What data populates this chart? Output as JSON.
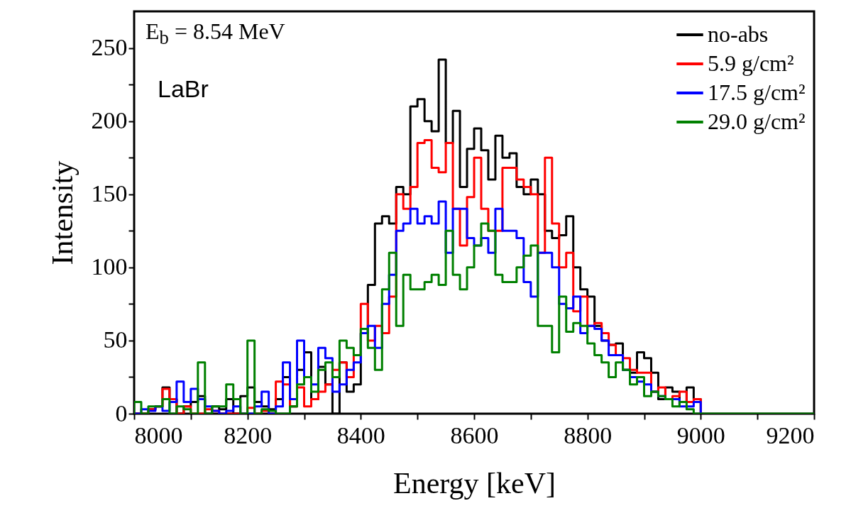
{
  "chart_data": {
    "type": "histogram",
    "xlabel": "Energy [keV]",
    "ylabel": "Intensity",
    "annotations": [
      "E$_{b}$ = 8.54 MeV",
      "LaBr"
    ],
    "bins": [
      8000,
      8012.5,
      8025,
      8037.5,
      8050,
      8062.5,
      8075,
      8087.5,
      8100,
      8112.5,
      8125,
      8137.5,
      8150,
      8162.5,
      8175,
      8187.5,
      8200,
      8212.5,
      8225,
      8237.5,
      8250,
      8262.5,
      8275,
      8287.5,
      8300,
      8312.5,
      8325,
      8337.5,
      8350,
      8362.5,
      8375,
      8387.5,
      8400,
      8412.5,
      8425,
      8437.5,
      8450,
      8462.5,
      8475,
      8487.5,
      8500,
      8512.5,
      8525,
      8537.5,
      8550,
      8562.5,
      8575,
      8587.5,
      8600,
      8612.5,
      8625,
      8637.5,
      8650,
      8662.5,
      8675,
      8687.5,
      8700,
      8712.5,
      8725,
      8737.5,
      8750,
      8762.5,
      8775,
      8787.5,
      8800,
      8812.5,
      8825,
      8837.5,
      8850,
      8862.5,
      8875,
      8887.5,
      8900,
      8912.5,
      8925,
      8937.5,
      8950,
      8962.5,
      8975,
      8987.5,
      9000,
      9012.5,
      9025,
      9037.5,
      9050,
      9062.5,
      9075,
      9087.5,
      9100,
      9112.5,
      9125,
      9137.5,
      9150,
      9162.5,
      9175,
      9187.5,
      9200
    ],
    "series": [
      {
        "name": "no-abs",
        "color": "#000000",
        "bins": [
          8000,
          8012.5,
          8025,
          8037.5,
          8050,
          8062.5,
          8075,
          8087.5,
          8100,
          8112.5,
          8125,
          8137.5,
          8150,
          8162.5,
          8175,
          8187.5,
          8200,
          8212.5,
          8225,
          8237.5,
          8250,
          8262.5,
          8275,
          8287.5,
          8300,
          8312.5,
          8325,
          8337.5,
          8350,
          8362.5,
          8375,
          8387.5,
          8400,
          8412.5,
          8425,
          8437.5,
          8450,
          8462.5,
          8475,
          8487.5,
          8500,
          8512.5,
          8525,
          8537.5,
          8550,
          8562.5,
          8575,
          8587.5,
          8600,
          8612.5,
          8625,
          8637.5,
          8650,
          8662.5,
          8675,
          8687.5,
          8700,
          8712.5,
          8725,
          8737.5,
          8750,
          8762.5,
          8775,
          8787.5,
          8800,
          8812.5,
          8825,
          8837.5,
          8850,
          8862.5,
          8875,
          8887.5,
          8900,
          8912.5,
          8925,
          8937.5,
          8950,
          8962.5,
          8975,
          8987.5,
          9000
        ],
        "values": [
          0,
          0,
          3,
          5,
          18,
          10,
          0,
          5,
          8,
          12,
          0,
          5,
          3,
          10,
          0,
          12,
          18,
          8,
          5,
          3,
          10,
          25,
          5,
          30,
          42,
          10,
          32,
          20,
          0,
          35,
          15,
          20,
          55,
          88,
          130,
          135,
          130,
          155,
          150,
          210,
          215,
          200,
          193,
          242,
          185,
          207,
          155,
          181,
          195,
          180,
          160,
          190,
          175,
          178,
          155,
          150,
          160,
          150,
          125,
          120,
          122,
          135,
          100,
          85,
          80,
          60,
          50,
          47,
          48,
          30,
          28,
          42,
          38,
          28,
          10,
          18,
          15,
          8,
          18,
          10
        ]
      },
      {
        "name": "5.9 g/cm²",
        "color": "#ff0000",
        "bins": [
          8000,
          8012.5,
          8025,
          8037.5,
          8050,
          8062.5,
          8075,
          8087.5,
          8100,
          8112.5,
          8125,
          8137.5,
          8150,
          8162.5,
          8175,
          8187.5,
          8200,
          8212.5,
          8225,
          8237.5,
          8250,
          8262.5,
          8275,
          8287.5,
          8300,
          8312.5,
          8325,
          8337.5,
          8350,
          8362.5,
          8375,
          8387.5,
          8400,
          8412.5,
          8425,
          8437.5,
          8450,
          8462.5,
          8475,
          8487.5,
          8500,
          8512.5,
          8525,
          8537.5,
          8550,
          8562.5,
          8575,
          8587.5,
          8600,
          8612.5,
          8625,
          8637.5,
          8650,
          8662.5,
          8675,
          8687.5,
          8700,
          8712.5,
          8725,
          8737.5,
          8750,
          8762.5,
          8775,
          8787.5,
          8800,
          8812.5,
          8825,
          8837.5,
          8850,
          8862.5,
          8875,
          8887.5,
          8900,
          8912.5,
          8925,
          8937.5,
          8950,
          8962.5,
          8975,
          8987.5,
          9000
        ],
        "values": [
          0,
          0,
          3,
          5,
          17,
          10,
          0,
          5,
          0,
          0,
          3,
          2,
          0,
          0,
          0,
          0,
          4,
          0,
          2,
          0,
          22,
          20,
          5,
          18,
          5,
          10,
          15,
          20,
          30,
          35,
          25,
          40,
          75,
          50,
          60,
          55,
          80,
          150,
          140,
          155,
          185,
          187,
          168,
          165,
          185,
          140,
          115,
          148,
          175,
          140,
          125,
          125,
          168,
          168,
          160,
          155,
          150,
          110,
          175,
          130,
          100,
          110,
          70,
          80,
          60,
          62,
          55,
          47,
          40,
          38,
          30,
          28,
          28,
          15,
          18,
          10,
          12,
          15,
          8,
          10
        ]
      },
      {
        "name": "17.5 g/cm²",
        "color": "#0000ff",
        "bins": [
          8000,
          8012.5,
          8025,
          8037.5,
          8050,
          8062.5,
          8075,
          8087.5,
          8100,
          8112.5,
          8125,
          8137.5,
          8150,
          8162.5,
          8175,
          8187.5,
          8200,
          8212.5,
          8225,
          8237.5,
          8250,
          8262.5,
          8275,
          8287.5,
          8300,
          8312.5,
          8325,
          8337.5,
          8350,
          8362.5,
          8375,
          8387.5,
          8400,
          8412.5,
          8425,
          8437.5,
          8450,
          8462.5,
          8475,
          8487.5,
          8500,
          8512.5,
          8525,
          8537.5,
          8550,
          8562.5,
          8575,
          8587.5,
          8600,
          8612.5,
          8625,
          8637.5,
          8650,
          8662.5,
          8675,
          8687.5,
          8700,
          8712.5,
          8725,
          8737.5,
          8750,
          8762.5,
          8775,
          8787.5,
          8800,
          8812.5,
          8825,
          8837.5,
          8850,
          8862.5,
          8875,
          8887.5,
          8900,
          8912.5,
          8925,
          8937.5,
          8950,
          8962.5,
          8975,
          8987.5,
          9000
        ],
        "values": [
          0,
          3,
          2,
          5,
          2,
          8,
          22,
          8,
          17,
          10,
          5,
          2,
          0,
          2,
          5,
          0,
          0,
          5,
          15,
          0,
          5,
          35,
          10,
          50,
          25,
          20,
          45,
          38,
          15,
          20,
          30,
          35,
          55,
          60,
          45,
          75,
          95,
          125,
          130,
          140,
          130,
          135,
          130,
          145,
          110,
          140,
          140,
          120,
          115,
          120,
          110,
          140,
          125,
          125,
          120,
          90,
          80,
          110,
          110,
          100,
          75,
          72,
          80,
          55,
          60,
          58,
          50,
          40,
          40,
          30,
          25,
          22,
          20,
          15,
          12,
          10,
          10,
          5,
          5,
          8
        ]
      },
      {
        "name": "29.0 g/cm²",
        "color": "#008000",
        "values": [
          8,
          0,
          5,
          5,
          10,
          0,
          5,
          3,
          0,
          35,
          0,
          5,
          5,
          20,
          10,
          0,
          50,
          0,
          3,
          2,
          0,
          0,
          5,
          20,
          25,
          15,
          30,
          35,
          25,
          50,
          45,
          40,
          58,
          45,
          30,
          85,
          110,
          60,
          95,
          85,
          85,
          90,
          95,
          88,
          125,
          95,
          85,
          100,
          115,
          130,
          125,
          95,
          90,
          90,
          100,
          108,
          115,
          60,
          60,
          42,
          80,
          56,
          62,
          60,
          48,
          40,
          35,
          25,
          35,
          30,
          20,
          25,
          12,
          15,
          12,
          10,
          5,
          8,
          3,
          0,
          0,
          0,
          0,
          0,
          0,
          0,
          0,
          0,
          0,
          0,
          0,
          0,
          0,
          0,
          0,
          0
        ]
      }
    ],
    "xlim": [
      8000,
      9200
    ],
    "xticks": [
      8000,
      {
        "value": 8100,
        "label": null
      },
      8200,
      {
        "value": 8300,
        "label": null
      },
      8400,
      {
        "value": 8500,
        "label": null
      },
      8600,
      {
        "value": 8700,
        "label": null
      },
      8800,
      {
        "value": 8900,
        "label": null
      },
      9000,
      {
        "value": 9100,
        "label": null
      },
      9200
    ],
    "ylim": [
      0,
      275
    ],
    "yticks": [
      0,
      {
        "value": 25,
        "label": null
      },
      50,
      {
        "value": 75,
        "label": null
      },
      100,
      {
        "value": 125,
        "label": null
      },
      150,
      {
        "value": 175,
        "label": null
      },
      200,
      {
        "value": 225,
        "label": null
      },
      250
    ],
    "legend": "top right",
    "grid": false,
    "line_style": "solid"
  }
}
